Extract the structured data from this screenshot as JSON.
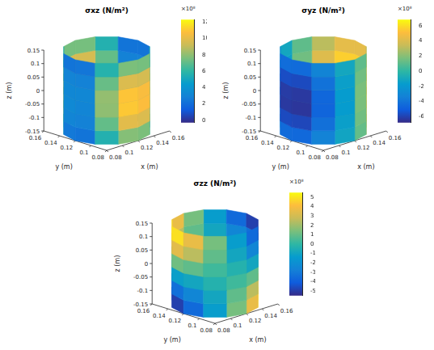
{
  "chart_data": [
    {
      "type": "cylinder_surface",
      "title": "σxz (N/m²)",
      "xlabel": "x (m)",
      "ylabel": "y (m)",
      "zlabel": "z (m)",
      "xlim": [
        0.08,
        0.16
      ],
      "ylim": [
        0.08,
        0.16
      ],
      "zlim": [
        -0.15,
        0.15
      ],
      "xticks": [
        0.08,
        0.1,
        0.12,
        0.14,
        0.16
      ],
      "yticks": [
        0.08,
        0.1,
        0.12,
        0.14,
        0.16
      ],
      "zticks": [
        -0.15,
        -0.1,
        -0.05,
        0,
        0.05,
        0.1,
        0.15
      ],
      "center": [
        0.12,
        0.12
      ],
      "radius": 0.04,
      "theta_edges": [
        0,
        30,
        60,
        90,
        120,
        150,
        180,
        210,
        240,
        270,
        300,
        330,
        360
      ],
      "z_edges": [
        -0.15,
        -0.1,
        -0.05,
        0,
        0.05,
        0.1,
        0.15
      ],
      "cells": [
        [
          2.4,
          5.7,
          7.6,
          7.7,
          5.8,
          2.5,
          2.3,
          5.6,
          7.8,
          7.6,
          5.7,
          2.4
        ],
        [
          3.0,
          7.2,
          9.6,
          9.8,
          7.3,
          3.1,
          2.9,
          7.1,
          9.9,
          9.7,
          7.2,
          3.0
        ],
        [
          3.2,
          8.0,
          10.7,
          10.8,
          8.1,
          3.3,
          3.1,
          8.0,
          11.0,
          10.7,
          8.0,
          3.2
        ],
        [
          3.1,
          7.9,
          10.6,
          10.7,
          8.0,
          3.2,
          3.2,
          8.1,
          10.9,
          10.6,
          7.9,
          3.1
        ],
        [
          2.9,
          7.1,
          9.5,
          9.6,
          7.1,
          3.0,
          2.9,
          7.2,
          9.7,
          9.5,
          7.1,
          2.9
        ],
        [
          2.3,
          5.6,
          7.5,
          7.5,
          5.6,
          2.3,
          2.4,
          5.7,
          7.6,
          7.5,
          5.6,
          2.3
        ]
      ],
      "colorbar": {
        "range": [
          -0.3,
          12.3
        ],
        "ticks": [
          0,
          2,
          4,
          6,
          8,
          10,
          12
        ],
        "label": "×10⁸"
      }
    },
    {
      "type": "cylinder_surface",
      "title": "σyz (N/m²)",
      "xlabel": "x (m)",
      "ylabel": "y (m)",
      "zlabel": "z (m)",
      "xlim": [
        0.08,
        0.16
      ],
      "ylim": [
        0.08,
        0.16
      ],
      "zlim": [
        -0.15,
        0.15
      ],
      "xticks": [
        0.08,
        0.1,
        0.12,
        0.14,
        0.16
      ],
      "yticks": [
        0.08,
        0.1,
        0.12,
        0.14,
        0.16
      ],
      "zticks": [
        -0.15,
        -0.1,
        -0.05,
        0,
        0.05,
        0.1,
        0.15
      ],
      "center": [
        0.12,
        0.12
      ],
      "radius": 0.04,
      "theta_edges": [
        0,
        30,
        60,
        90,
        120,
        150,
        180,
        210,
        240,
        270,
        300,
        330,
        360
      ],
      "z_edges": [
        -0.15,
        -0.1,
        -0.05,
        0,
        0.05,
        0.1,
        0.15
      ],
      "cells": [
        [
          4.4,
          3.2,
          1.2,
          -1.2,
          -3.2,
          -4.4,
          -4.5,
          -3.3,
          -1.2,
          1.2,
          3.2,
          4.4
        ],
        [
          5.7,
          4.1,
          1.5,
          -1.5,
          -4.1,
          -5.7,
          -5.8,
          -4.2,
          -1.5,
          1.5,
          4.1,
          5.6
        ],
        [
          6.3,
          4.6,
          1.7,
          -1.7,
          -4.6,
          -6.3,
          -6.4,
          -4.7,
          -1.7,
          1.7,
          4.6,
          6.2
        ],
        [
          6.2,
          4.5,
          1.7,
          -1.7,
          -4.5,
          -6.2,
          -6.3,
          -4.6,
          -1.7,
          1.7,
          4.5,
          6.2
        ],
        [
          5.6,
          4.1,
          1.5,
          -1.5,
          -4.1,
          -5.6,
          -5.7,
          -4.1,
          -1.5,
          1.5,
          4.0,
          5.6
        ],
        [
          4.3,
          3.1,
          1.1,
          -1.1,
          -3.1,
          -4.3,
          -4.4,
          -3.2,
          -1.1,
          1.1,
          3.1,
          4.3
        ]
      ],
      "colorbar": {
        "range": [
          -6.8,
          6.8
        ],
        "ticks": [
          -6,
          -4,
          -2,
          0,
          2,
          4,
          6
        ],
        "label": "×10⁸"
      }
    },
    {
      "type": "cylinder_surface",
      "title": "σzz (N/m²)",
      "xlabel": "x (m)",
      "ylabel": "y (m)",
      "zlabel": "z (m)",
      "xlim": [
        0.08,
        0.16
      ],
      "ylim": [
        0.08,
        0.16
      ],
      "zlim": [
        -0.15,
        0.15
      ],
      "xticks": [
        0.08,
        0.1,
        0.12,
        0.14,
        0.16
      ],
      "yticks": [
        0.08,
        0.1,
        0.12,
        0.14,
        0.16
      ],
      "zticks": [
        -0.15,
        -0.1,
        -0.05,
        0,
        0.05,
        0.1,
        0.15
      ],
      "center": [
        0.12,
        0.12
      ],
      "radius": 0.04,
      "theta_edges": [
        0,
        30,
        60,
        90,
        120,
        150,
        180,
        210,
        240,
        270,
        300,
        330,
        360
      ],
      "z_edges": [
        -0.15,
        -0.1,
        -0.05,
        0,
        0.05,
        0.1,
        0.15
      ],
      "cells": [
        [
          3.6,
          1.3,
          -1.3,
          -3.6,
          -4.9,
          -4.9,
          -3.6,
          -1.3,
          1.3,
          3.6,
          4.9,
          4.9
        ],
        [
          2.5,
          0.9,
          -0.9,
          -2.5,
          -3.4,
          -3.4,
          -2.5,
          -0.9,
          0.9,
          2.5,
          3.4,
          3.4
        ],
        [
          0.9,
          0.3,
          -0.3,
          -0.9,
          -1.2,
          -1.2,
          -0.9,
          -0.3,
          0.3,
          0.9,
          1.2,
          1.2
        ],
        [
          -0.9,
          -0.3,
          0.3,
          0.9,
          1.2,
          1.2,
          0.9,
          0.3,
          -0.3,
          -0.9,
          -1.2,
          -1.2
        ],
        [
          -2.5,
          -0.9,
          0.9,
          2.5,
          3.4,
          3.4,
          2.5,
          0.9,
          -0.9,
          -2.5,
          -3.4,
          -3.4
        ],
        [
          -3.6,
          -1.3,
          1.3,
          3.6,
          4.9,
          4.9,
          3.6,
          1.3,
          -1.3,
          -3.6,
          -4.9,
          -4.9
        ]
      ],
      "colorbar": {
        "range": [
          -5.5,
          5.5
        ],
        "ticks": [
          -5,
          -4,
          -3,
          -2,
          -1,
          0,
          1,
          2,
          3,
          4,
          5
        ],
        "label": "×10⁸"
      }
    }
  ]
}
